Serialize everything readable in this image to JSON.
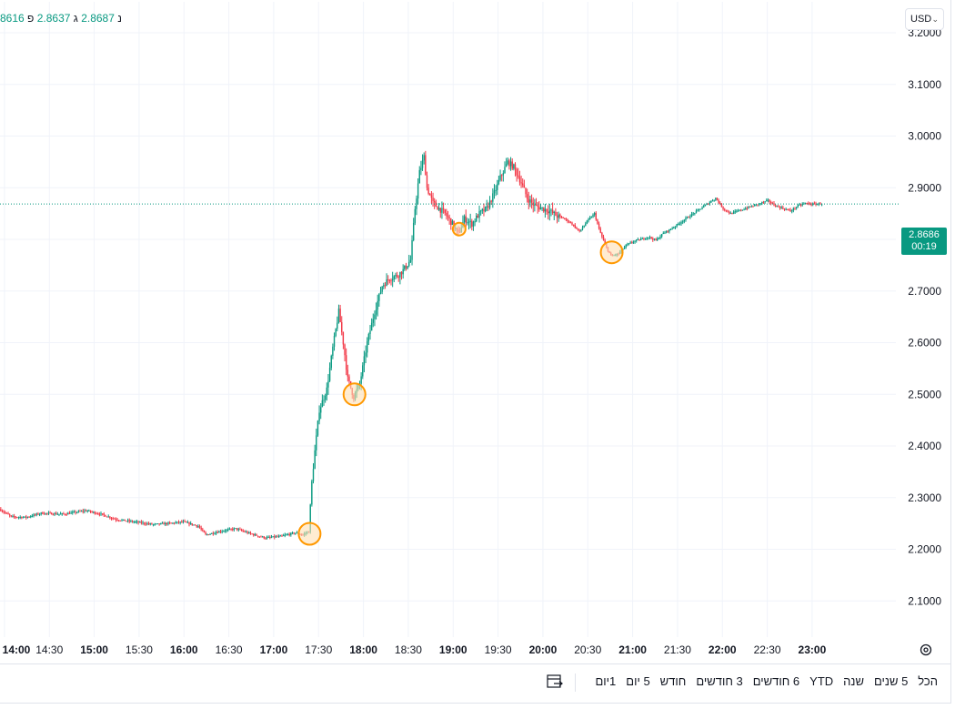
{
  "legend": {
    "items": [
      {
        "key": "",
        "value": "8616"
      },
      {
        "key": "נ",
        "value": "2.8687"
      },
      {
        "key": "ג",
        "value": "2.8637"
      },
      {
        "key": "פ",
        "value": ""
      }
    ]
  },
  "currency": {
    "label": "USD"
  },
  "price_tag": {
    "price": "2.8686",
    "countdown": "00:19"
  },
  "timeframes": [
    "1יום",
    "5 יום",
    "חודש",
    "3 חודשים",
    "6 חודשים",
    "YTD",
    "שנה",
    "5 שנים",
    "הכל"
  ],
  "colors": {
    "up": "#089981",
    "down": "#f23645",
    "marker": "#ff9800",
    "marker_fill": "#ffe0b2",
    "grid": "#f0f3fa",
    "current_line": "#089981"
  },
  "icons": {
    "settings": "gear-icon",
    "goto": "calendar-arrow-icon"
  },
  "chart_data": {
    "type": "candlestick",
    "title": "",
    "xlabel": "",
    "ylabel": "",
    "x_ticks": [
      "14:00",
      "14:30",
      "15:00",
      "15:30",
      "16:00",
      "16:30",
      "17:00",
      "17:30",
      "18:00",
      "18:30",
      "19:00",
      "19:30",
      "20:00",
      "20:30",
      "21:00",
      "21:30",
      "22:00",
      "22:30",
      "23:00"
    ],
    "y_ticks": [
      "2.1000",
      "2.2000",
      "2.3000",
      "2.4000",
      "2.5000",
      "2.6000",
      "2.7000",
      "2.8000",
      "2.9000",
      "3.0000",
      "3.1000",
      "3.2000"
    ],
    "ylim": [
      2.03,
      3.26
    ],
    "xlim": [
      "13:57",
      "23:56"
    ],
    "current_price": 2.8686,
    "grid": true,
    "path": [
      [
        "13:57",
        2.278
      ],
      [
        "14:05",
        2.263
      ],
      [
        "14:15",
        2.262
      ],
      [
        "14:25",
        2.27
      ],
      [
        "14:40",
        2.268
      ],
      [
        "14:55",
        2.275
      ],
      [
        "15:05",
        2.268
      ],
      [
        "15:15",
        2.258
      ],
      [
        "15:30",
        2.252
      ],
      [
        "15:40",
        2.248
      ],
      [
        "15:50",
        2.25
      ],
      [
        "16:00",
        2.253
      ],
      [
        "16:10",
        2.245
      ],
      [
        "16:15",
        2.228
      ],
      [
        "16:25",
        2.235
      ],
      [
        "16:35",
        2.24
      ],
      [
        "16:45",
        2.23
      ],
      [
        "16:55",
        2.222
      ],
      [
        "17:05",
        2.225
      ],
      [
        "17:15",
        2.232
      ],
      [
        "17:20",
        2.228
      ],
      [
        "17:24",
        2.235
      ],
      [
        "17:26",
        2.33
      ],
      [
        "17:28",
        2.39
      ],
      [
        "17:31",
        2.47
      ],
      [
        "17:36",
        2.51
      ],
      [
        "17:40",
        2.59
      ],
      [
        "17:44",
        2.66
      ],
      [
        "17:47",
        2.6
      ],
      [
        "17:50",
        2.53
      ],
      [
        "17:54",
        2.495
      ],
      [
        "17:58",
        2.52
      ],
      [
        "18:03",
        2.6
      ],
      [
        "18:08",
        2.66
      ],
      [
        "18:13",
        2.71
      ],
      [
        "18:18",
        2.725
      ],
      [
        "18:23",
        2.73
      ],
      [
        "18:27",
        2.74
      ],
      [
        "18:32",
        2.76
      ],
      [
        "18:35",
        2.86
      ],
      [
        "18:38",
        2.93
      ],
      [
        "18:41",
        2.96
      ],
      [
        "18:43",
        2.9
      ],
      [
        "18:47",
        2.87
      ],
      [
        "18:51",
        2.86
      ],
      [
        "18:55",
        2.85
      ],
      [
        "19:00",
        2.83
      ],
      [
        "19:04",
        2.81
      ],
      [
        "19:08",
        2.84
      ],
      [
        "19:13",
        2.83
      ],
      [
        "19:18",
        2.85
      ],
      [
        "19:23",
        2.86
      ],
      [
        "19:28",
        2.89
      ],
      [
        "19:32",
        2.92
      ],
      [
        "19:37",
        2.95
      ],
      [
        "19:41",
        2.94
      ],
      [
        "19:46",
        2.91
      ],
      [
        "19:50",
        2.88
      ],
      [
        "19:55",
        2.865
      ],
      [
        "20:00",
        2.86
      ],
      [
        "20:05",
        2.855
      ],
      [
        "20:10",
        2.845
      ],
      [
        "20:15",
        2.84
      ],
      [
        "20:20",
        2.83
      ],
      [
        "20:25",
        2.815
      ],
      [
        "20:30",
        2.835
      ],
      [
        "20:35",
        2.85
      ],
      [
        "20:38",
        2.82
      ],
      [
        "20:42",
        2.79
      ],
      [
        "20:46",
        2.768
      ],
      [
        "20:51",
        2.772
      ],
      [
        "20:56",
        2.788
      ],
      [
        "21:01",
        2.796
      ],
      [
        "21:06",
        2.8
      ],
      [
        "21:11",
        2.805
      ],
      [
        "21:16",
        2.798
      ],
      [
        "21:21",
        2.812
      ],
      [
        "21:26",
        2.82
      ],
      [
        "21:31",
        2.83
      ],
      [
        "21:36",
        2.84
      ],
      [
        "21:41",
        2.85
      ],
      [
        "21:46",
        2.86
      ],
      [
        "21:51",
        2.87
      ],
      [
        "21:56",
        2.88
      ],
      [
        "22:01",
        2.86
      ],
      [
        "22:06",
        2.85
      ],
      [
        "22:11",
        2.855
      ],
      [
        "22:16",
        2.86
      ],
      [
        "22:21",
        2.865
      ],
      [
        "22:26",
        2.87
      ],
      [
        "22:31",
        2.875
      ],
      [
        "22:36",
        2.865
      ],
      [
        "22:41",
        2.86
      ],
      [
        "22:46",
        2.855
      ],
      [
        "22:51",
        2.865
      ],
      [
        "22:56",
        2.87
      ],
      [
        "23:01",
        2.868
      ],
      [
        "23:06",
        2.869
      ]
    ],
    "markers": [
      {
        "x": "17:24",
        "y": 2.23
      },
      {
        "x": "17:54",
        "y": 2.5
      },
      {
        "x": "19:04",
        "y": 2.82
      },
      {
        "x": "20:46",
        "y": 2.775
      }
    ]
  }
}
